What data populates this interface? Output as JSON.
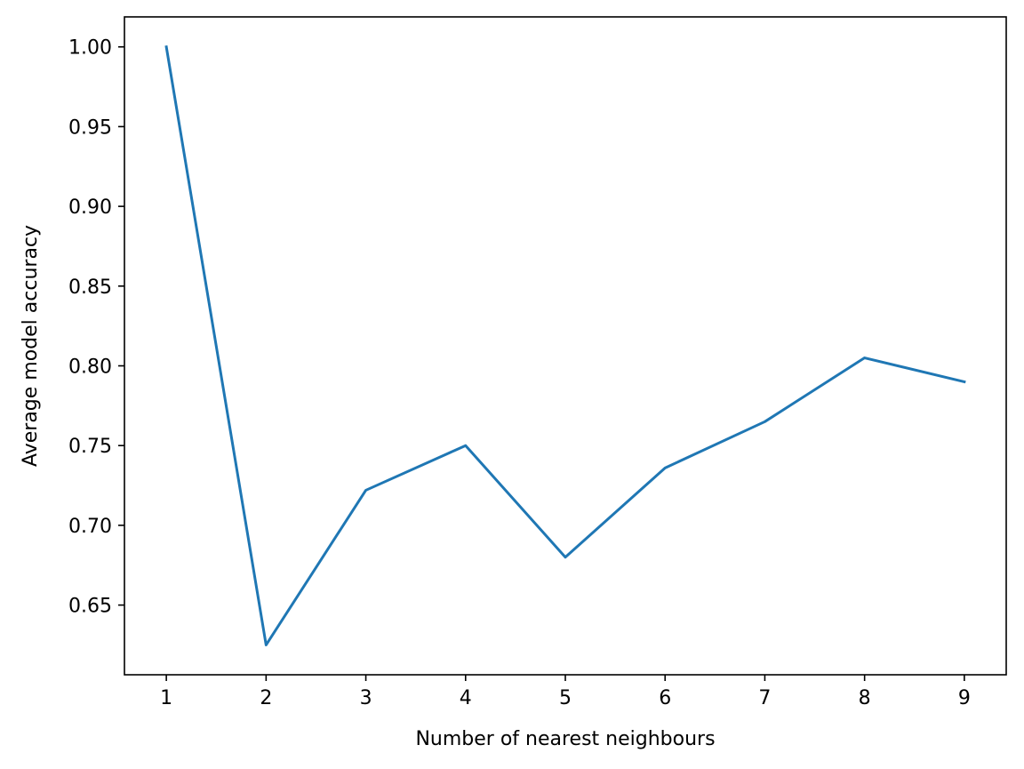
{
  "chart_data": {
    "type": "line",
    "title": "",
    "xlabel": "Number of nearest neighbours",
    "ylabel": "Average model accuracy",
    "x": [
      1,
      2,
      3,
      4,
      5,
      6,
      7,
      8,
      9
    ],
    "series": [
      {
        "values": [
          1.0,
          0.625,
          0.722,
          0.75,
          0.68,
          0.736,
          0.765,
          0.805,
          0.79
        ],
        "color": "#1f77b4"
      }
    ],
    "xlim": [
      0.58,
      9.42
    ],
    "ylim": [
      0.6063,
      1.0188
    ],
    "xticks": [
      1,
      2,
      3,
      4,
      5,
      6,
      7,
      8,
      9
    ],
    "xtick_labels": [
      "1",
      "2",
      "3",
      "4",
      "5",
      "6",
      "7",
      "8",
      "9"
    ],
    "yticks": [
      0.65,
      0.7,
      0.75,
      0.8,
      0.85,
      0.9,
      0.95,
      1.0
    ],
    "ytick_labels": [
      "0.65",
      "0.70",
      "0.75",
      "0.80",
      "0.85",
      "0.90",
      "0.95",
      "1.00"
    ],
    "grid": false,
    "legend": "none"
  }
}
